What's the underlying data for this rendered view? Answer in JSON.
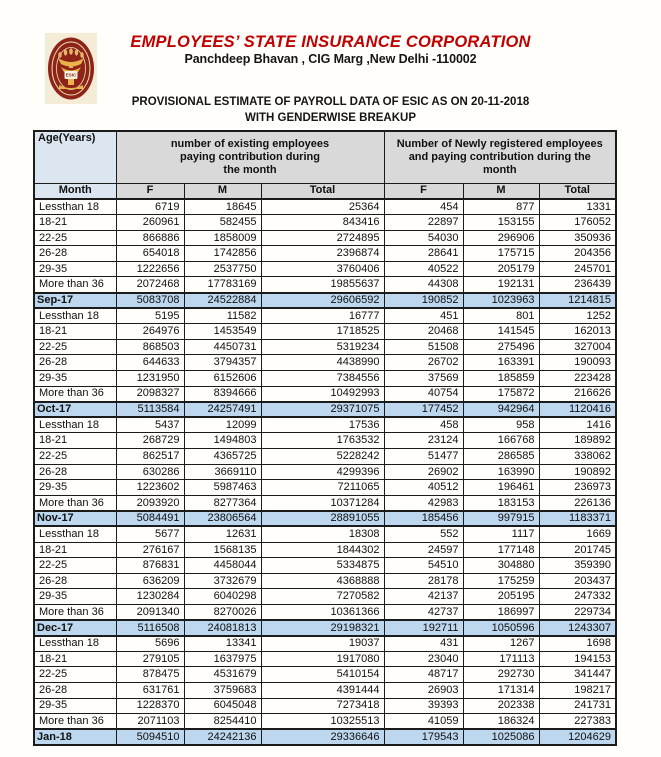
{
  "header": {
    "organization": "EMPLOYEES’ STATE INSURANCE CORPORATION",
    "address": "Panchdeep Bhavan , CIG Marg ,New Delhi -110002",
    "report_title": "PROVISIONAL ESTIMATE OF PAYROLL DATA OF ESIC AS ON 20-11-2018",
    "report_subtitle": "WITH GENDERWISE BREAKUP",
    "logo_text": "ESIC"
  },
  "colors": {
    "title_red": "#c00000",
    "header_gray": "#d9d9d9",
    "corner_blue": "#dce6f1",
    "month_row_blue": "#bdd7ee",
    "logo_maroon": "#8e2418"
  },
  "table": {
    "corner_header": "Age(Years)",
    "month_header": "Month",
    "group_headers": [
      {
        "lines": [
          "number of existing employees",
          "paying contribution during",
          "the month"
        ]
      },
      {
        "lines": [
          "Number of Newly  registered employees",
          "and paying contribution during the",
          "month"
        ]
      }
    ],
    "column_headers": [
      "F",
      "M",
      "Total",
      "F",
      "M",
      "Total"
    ],
    "rows": [
      {
        "label": "Lessthan 18",
        "type": "age",
        "values": [
          6719,
          18645,
          25364,
          454,
          877,
          1331
        ]
      },
      {
        "label": "18-21",
        "type": "age",
        "values": [
          260961,
          582455,
          843416,
          22897,
          153155,
          176052
        ]
      },
      {
        "label": "22-25",
        "type": "age",
        "values": [
          866886,
          1858009,
          2724895,
          54030,
          296906,
          350936
        ]
      },
      {
        "label": "26-28",
        "type": "age",
        "values": [
          654018,
          1742856,
          2396874,
          28641,
          175715,
          204356
        ]
      },
      {
        "label": "29-35",
        "type": "age",
        "values": [
          1222656,
          2537750,
          3760406,
          40522,
          205179,
          245701
        ]
      },
      {
        "label": "More than 36",
        "type": "age",
        "values": [
          2072468,
          17783169,
          19855637,
          44308,
          192131,
          236439
        ]
      },
      {
        "label": "Sep-17",
        "type": "month",
        "values": [
          5083708,
          24522884,
          29606592,
          190852,
          1023963,
          1214815
        ]
      },
      {
        "label": "Lessthan 18",
        "type": "age",
        "values": [
          5195,
          11582,
          16777,
          451,
          801,
          1252
        ]
      },
      {
        "label": "18-21",
        "type": "age",
        "values": [
          264976,
          1453549,
          1718525,
          20468,
          141545,
          162013
        ]
      },
      {
        "label": "22-25",
        "type": "age",
        "values": [
          868503,
          4450731,
          5319234,
          51508,
          275496,
          327004
        ]
      },
      {
        "label": "26-28",
        "type": "age",
        "values": [
          644633,
          3794357,
          4438990,
          26702,
          163391,
          190093
        ]
      },
      {
        "label": "29-35",
        "type": "age",
        "values": [
          1231950,
          6152606,
          7384556,
          37569,
          185859,
          223428
        ]
      },
      {
        "label": "More than 36",
        "type": "age",
        "values": [
          2098327,
          8394666,
          10492993,
          40754,
          175872,
          216626
        ]
      },
      {
        "label": "Oct-17",
        "type": "month",
        "values": [
          5113584,
          24257491,
          29371075,
          177452,
          942964,
          1120416
        ]
      },
      {
        "label": "Lessthan 18",
        "type": "age",
        "values": [
          5437,
          12099,
          17536,
          458,
          958,
          1416
        ]
      },
      {
        "label": "18-21",
        "type": "age",
        "values": [
          268729,
          1494803,
          1763532,
          23124,
          166768,
          189892
        ]
      },
      {
        "label": "22-25",
        "type": "age",
        "values": [
          862517,
          4365725,
          5228242,
          51477,
          286585,
          338062
        ]
      },
      {
        "label": "26-28",
        "type": "age",
        "values": [
          630286,
          3669110,
          4299396,
          26902,
          163990,
          190892
        ]
      },
      {
        "label": "29-35",
        "type": "age",
        "values": [
          1223602,
          5987463,
          7211065,
          40512,
          196461,
          236973
        ]
      },
      {
        "label": "More than 36",
        "type": "age",
        "values": [
          2093920,
          8277364,
          10371284,
          42983,
          183153,
          226136
        ]
      },
      {
        "label": "Nov-17",
        "type": "month",
        "values": [
          5084491,
          23806564,
          28891055,
          185456,
          997915,
          1183371
        ]
      },
      {
        "label": "Lessthan 18",
        "type": "age",
        "values": [
          5677,
          12631,
          18308,
          552,
          1117,
          1669
        ]
      },
      {
        "label": "18-21",
        "type": "age",
        "values": [
          276167,
          1568135,
          1844302,
          24597,
          177148,
          201745
        ]
      },
      {
        "label": "22-25",
        "type": "age",
        "values": [
          876831,
          4458044,
          5334875,
          54510,
          304880,
          359390
        ]
      },
      {
        "label": "26-28",
        "type": "age",
        "values": [
          636209,
          3732679,
          4368888,
          28178,
          175259,
          203437
        ]
      },
      {
        "label": "29-35",
        "type": "age",
        "values": [
          1230284,
          6040298,
          7270582,
          42137,
          205195,
          247332
        ]
      },
      {
        "label": "More than 36",
        "type": "age",
        "values": [
          2091340,
          8270026,
          10361366,
          42737,
          186997,
          229734
        ]
      },
      {
        "label": "Dec-17",
        "type": "month",
        "values": [
          5116508,
          24081813,
          29198321,
          192711,
          1050596,
          1243307
        ]
      },
      {
        "label": "Lessthan 18",
        "type": "age",
        "values": [
          5696,
          13341,
          19037,
          431,
          1267,
          1698
        ]
      },
      {
        "label": "18-21",
        "type": "age",
        "values": [
          279105,
          1637975,
          1917080,
          23040,
          171113,
          194153
        ]
      },
      {
        "label": "22-25",
        "type": "age",
        "values": [
          878475,
          4531679,
          5410154,
          48717,
          292730,
          341447
        ]
      },
      {
        "label": "26-28",
        "type": "age",
        "values": [
          631761,
          3759683,
          4391444,
          26903,
          171314,
          198217
        ]
      },
      {
        "label": "29-35",
        "type": "age",
        "values": [
          1228370,
          6045048,
          7273418,
          39393,
          202338,
          241731
        ]
      },
      {
        "label": "More than 36",
        "type": "age",
        "values": [
          2071103,
          8254410,
          10325513,
          41059,
          186324,
          227383
        ]
      },
      {
        "label": "Jan-18",
        "type": "month",
        "values": [
          5094510,
          24242136,
          29336646,
          179543,
          1025086,
          1204629
        ]
      }
    ]
  }
}
